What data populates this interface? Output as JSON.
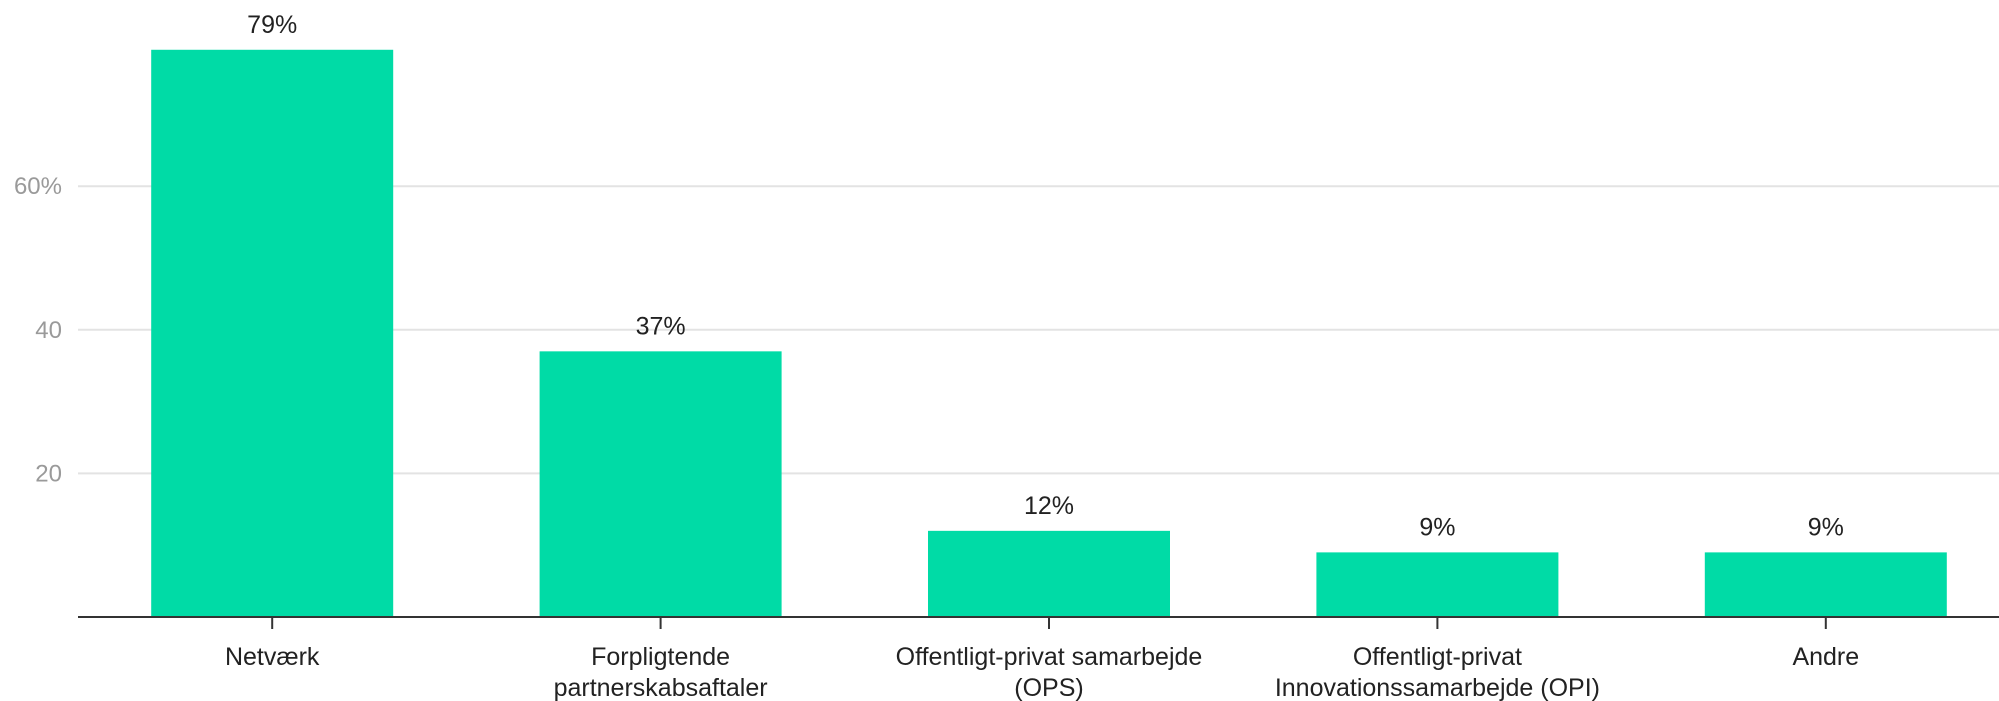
{
  "chart_data": {
    "type": "bar",
    "categories": [
      [
        "Netværk"
      ],
      [
        "Forpligtende",
        "partnerskabsaftaler"
      ],
      [
        "Offentligt-privat samarbejde",
        "(OPS)"
      ],
      [
        "Offentligt-privat",
        "Innovationssamarbejde (OPI)"
      ],
      [
        "Andre"
      ]
    ],
    "values": [
      79,
      37,
      12,
      9,
      9
    ],
    "data_labels": [
      "79%",
      "37%",
      "12%",
      "9%",
      "9%"
    ],
    "y_ticks": [
      {
        "value": 20,
        "label": "20"
      },
      {
        "value": 40,
        "label": "40"
      },
      {
        "value": 60,
        "label": "60%"
      }
    ],
    "ylim": [
      0,
      85
    ],
    "grid": true,
    "colors": {
      "bar": "#00dba6"
    }
  }
}
